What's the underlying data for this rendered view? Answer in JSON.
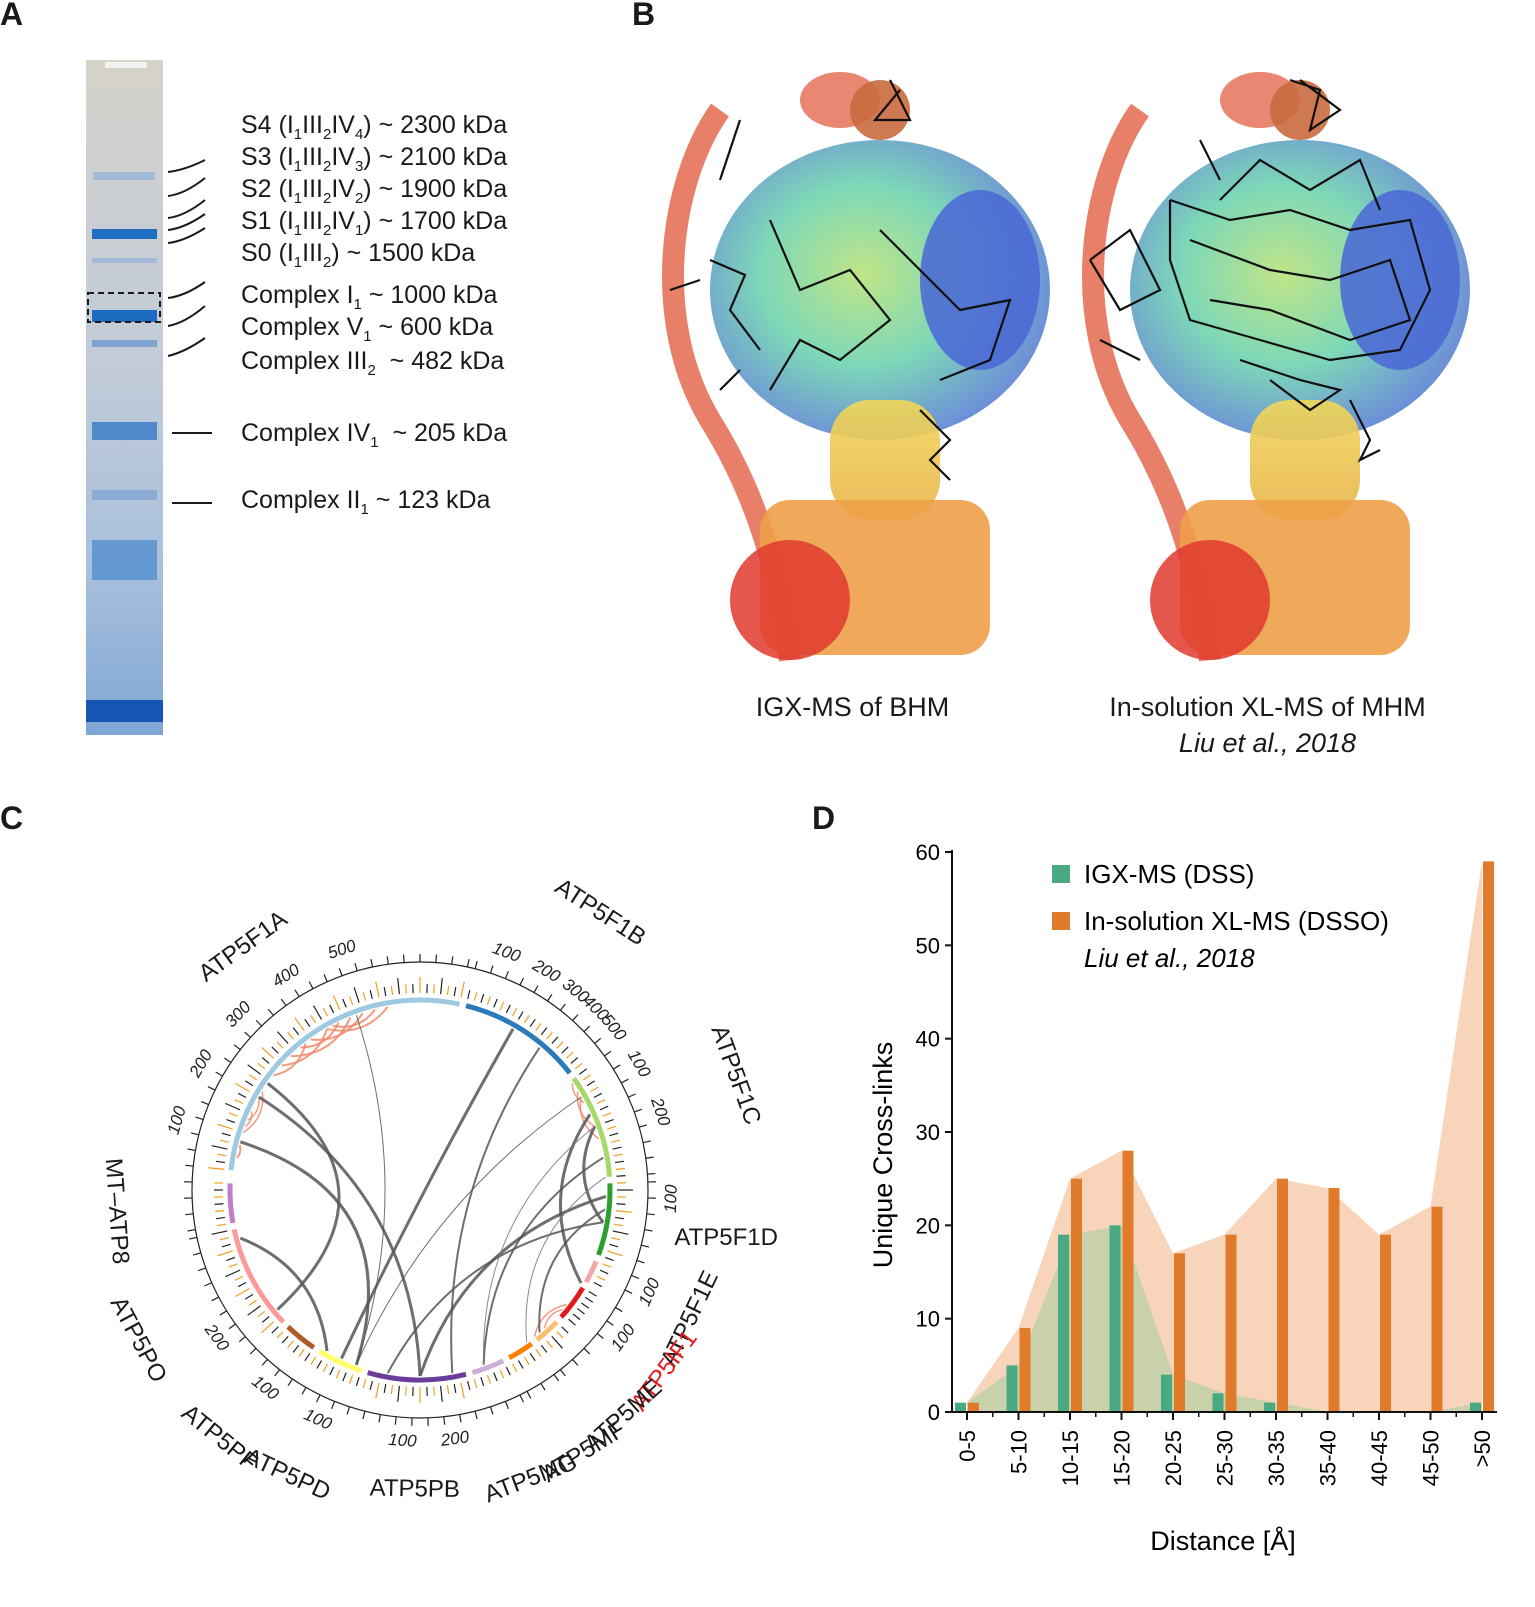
{
  "panels": {
    "a": "A",
    "b": "B",
    "c": "C",
    "d": "D"
  },
  "gel": {
    "bands": [
      {
        "prefix": "S4 (I",
        "s1": "1",
        "mid": "III",
        "s2": "2",
        "mid2": "IV",
        "s3": "4",
        "suffix": ") ~ 2300 kDa"
      },
      {
        "prefix": "S3 (I",
        "s1": "1",
        "mid": "III",
        "s2": "2",
        "mid2": "IV",
        "s3": "3",
        "suffix": ") ~ 2100 kDa"
      },
      {
        "prefix": "S2 (I",
        "s1": "1",
        "mid": "III",
        "s2": "2",
        "mid2": "IV",
        "s3": "2",
        "suffix": ") ~ 1900 kDa"
      },
      {
        "prefix": "S1 (I",
        "s1": "1",
        "mid": "III",
        "s2": "2",
        "mid2": "IV",
        "s3": "1",
        "suffix": ") ~ 1700 kDa"
      },
      {
        "prefix": "S0 (I",
        "s1": "1",
        "mid": "III",
        "s2": "2",
        "mid2": "",
        "s3": "",
        "suffix": ") ~ 1500 kDa"
      },
      {
        "prefix": "Complex I",
        "s1": "1",
        "mid": "",
        "s2": "",
        "mid2": "",
        "s3": "",
        "suffix": " ~ 1000 kDa"
      },
      {
        "prefix": "Complex V",
        "s1": "1",
        "mid": "",
        "s2": "",
        "mid2": "",
        "s3": "",
        "suffix": " ~ 600 kDa"
      },
      {
        "prefix": "Complex III",
        "s1": "2",
        "mid": "",
        "s2": "",
        "mid2": "",
        "s3": "",
        "suffix": "  ~ 482 kDa"
      },
      {
        "prefix": "Complex IV",
        "s1": "1",
        "mid": "",
        "s2": "",
        "mid2": "",
        "s3": "",
        "suffix": "  ~ 205 kDa"
      },
      {
        "prefix": "Complex II",
        "s1": "1",
        "mid": "",
        "s2": "",
        "mid2": "",
        "s3": "",
        "suffix": " ~ 123 kDa"
      }
    ]
  },
  "structures": {
    "left_caption": "IGX-MS of BHM",
    "right_caption": "In-solution XL-MS of MHM",
    "right_citation": "Liu et al., 2018"
  },
  "circos": {
    "subunits": [
      {
        "name": "ATP5F1A",
        "color": "#9ecae1",
        "red": false
      },
      {
        "name": "ATP5F1B",
        "color": "#2b7bba",
        "red": false
      },
      {
        "name": "ATP5F1C",
        "color": "#a6d96a",
        "red": false
      },
      {
        "name": "ATP5F1D",
        "color": "#2ca02c",
        "red": false
      },
      {
        "name": "ATP5F1E",
        "color": "#f4a6a6",
        "red": false
      },
      {
        "name": "ATP5IF1",
        "color": "#e31a1c",
        "red": true
      },
      {
        "name": "ATP5ME",
        "color": "#fdbf6f",
        "red": false
      },
      {
        "name": "ATP5MF",
        "color": "#ff7f00",
        "red": false
      },
      {
        "name": "ATP5MG",
        "color": "#cab2d6",
        "red": false
      },
      {
        "name": "ATP5PB",
        "color": "#6a3d9a",
        "red": false
      },
      {
        "name": "ATP5PD",
        "color": "#ffff66",
        "red": false
      },
      {
        "name": "ATP5PF",
        "color": "#b15928",
        "red": false
      },
      {
        "name": "ATP5PO",
        "color": "#fb9a99",
        "red": false
      },
      {
        "name": "MT–ATP8",
        "color": "#c27ec9",
        "red": false
      }
    ],
    "tick_labels": [
      "100",
      "200",
      "300",
      "400",
      "500",
      "100",
      "200",
      "300",
      "400",
      "500",
      "100",
      "200",
      "100",
      "100",
      "100",
      "200",
      "100",
      "100",
      "100",
      "200"
    ]
  },
  "chart_data": {
    "type": "bar",
    "categories": [
      "0-5",
      "5-10",
      "10-15",
      "15-20",
      "20-25",
      "25-30",
      "30-35",
      "35-40",
      "40-45",
      "45-50",
      ">50"
    ],
    "series": [
      {
        "name": "IGX-MS (DSS)",
        "values": [
          1,
          5,
          19,
          20,
          4,
          2,
          1,
          0,
          0,
          0,
          1
        ],
        "color": "#4aa882"
      },
      {
        "name": "In-solution XL-MS (DSSO)",
        "values": [
          1,
          9,
          25,
          28,
          17,
          19,
          25,
          24,
          19,
          22,
          59
        ],
        "color": "#e07b2c"
      }
    ],
    "legend_citation": "Liu et al., 2018",
    "xlabel": "Distance [Å]",
    "ylabel": "Unique Cross-links",
    "ylim": [
      0,
      60
    ],
    "yticks": [
      0,
      10,
      20,
      30,
      40,
      50,
      60
    ],
    "legend_position": "top-left",
    "grid": false
  }
}
